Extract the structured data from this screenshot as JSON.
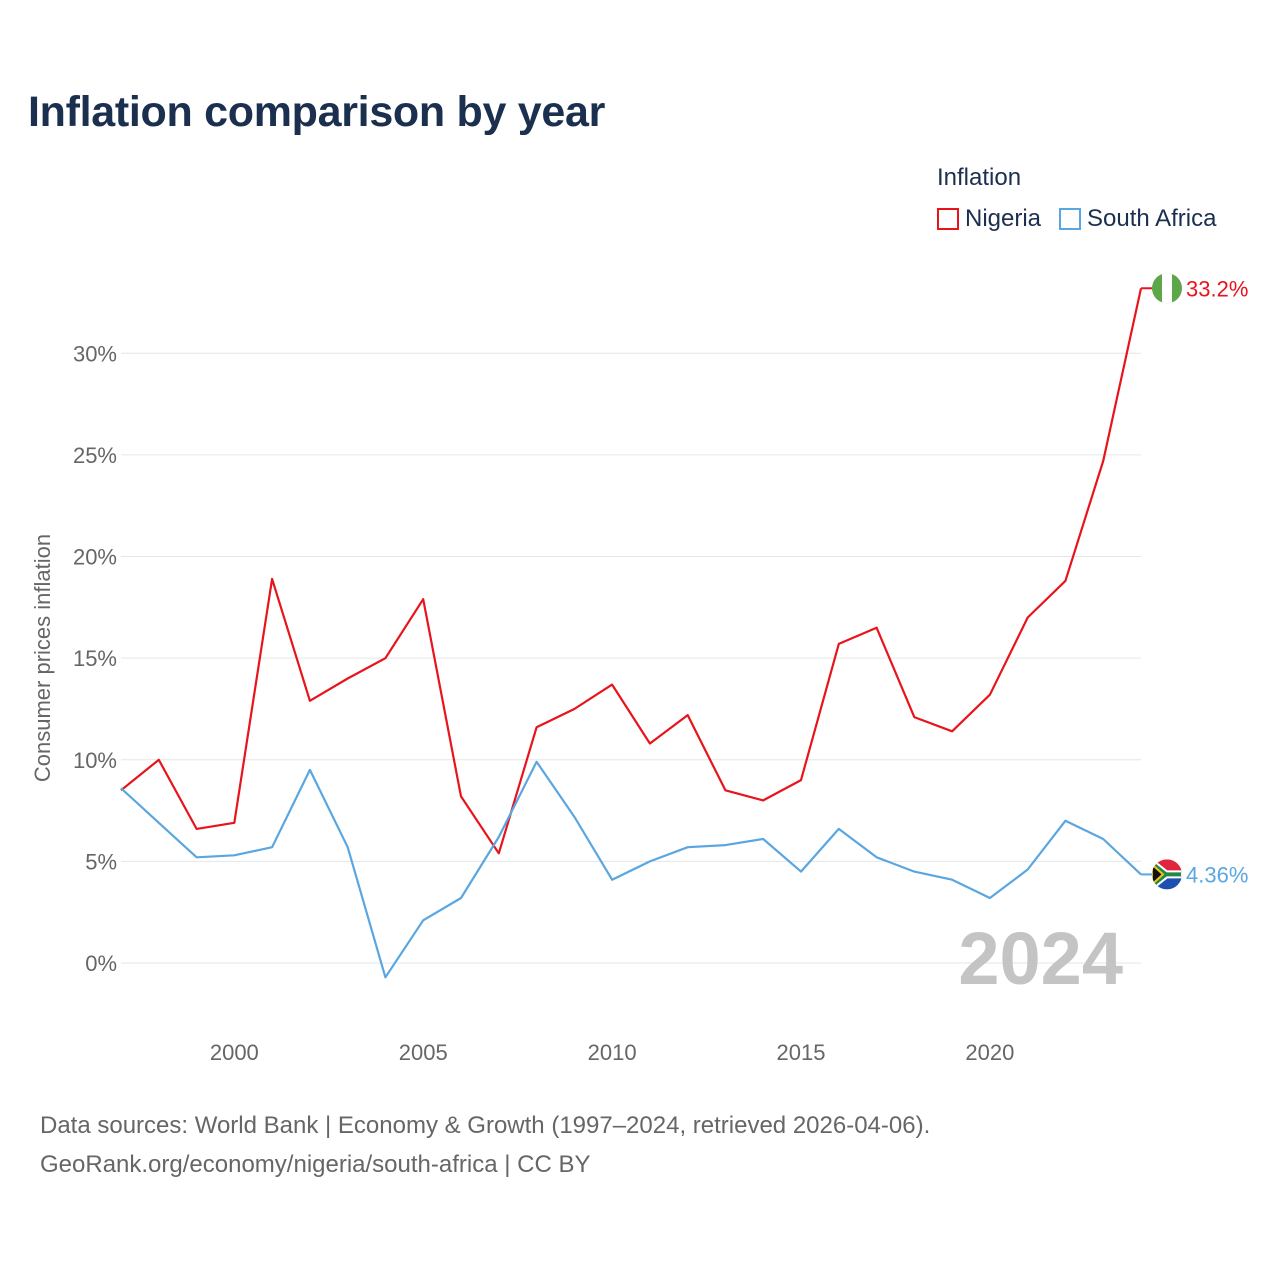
{
  "title": "Inflation comparison by year",
  "legend": {
    "title": "Inflation",
    "items": [
      {
        "label": "Nigeria",
        "color": "#e8141c"
      },
      {
        "label": "South Africa",
        "color": "#5aa6e0"
      }
    ]
  },
  "chart_data": {
    "type": "line",
    "title": "Inflation comparison by year",
    "xlabel": "",
    "ylabel": "Consumer prices inflation",
    "xlim": [
      1997,
      2024
    ],
    "ylim": [
      -3,
      34
    ],
    "x_ticks": [
      2000,
      2005,
      2010,
      2015,
      2020
    ],
    "y_ticks": [
      0,
      5,
      10,
      15,
      20,
      25,
      30
    ],
    "y_tick_labels": [
      "0%",
      "5%",
      "10%",
      "15%",
      "20%",
      "25%",
      "30%"
    ],
    "x": [
      1997,
      1998,
      1999,
      2000,
      2001,
      2002,
      2003,
      2004,
      2005,
      2006,
      2007,
      2008,
      2009,
      2010,
      2011,
      2012,
      2013,
      2014,
      2015,
      2016,
      2017,
      2018,
      2019,
      2020,
      2021,
      2022,
      2023,
      2024
    ],
    "series": [
      {
        "name": "Nigeria",
        "color": "#e8141c",
        "values": [
          8.5,
          10.0,
          6.6,
          6.9,
          18.9,
          12.9,
          14.0,
          15.0,
          17.9,
          8.2,
          5.4,
          11.6,
          12.5,
          13.7,
          10.8,
          12.2,
          8.5,
          8.0,
          9.0,
          15.7,
          16.5,
          12.1,
          11.4,
          13.2,
          17.0,
          18.8,
          24.7,
          33.2
        ],
        "end_label": "33.2%"
      },
      {
        "name": "South Africa",
        "color": "#5aa6e0",
        "values": [
          8.6,
          6.9,
          5.2,
          5.3,
          5.7,
          9.5,
          5.7,
          -0.7,
          2.1,
          3.2,
          6.2,
          9.9,
          7.2,
          4.1,
          5.0,
          5.7,
          5.8,
          6.1,
          4.5,
          6.6,
          5.2,
          4.5,
          4.1,
          3.2,
          4.6,
          7.0,
          6.1,
          4.36
        ],
        "end_label": "4.36%"
      }
    ],
    "current_year": "2024",
    "grid": true
  },
  "sources": {
    "line1": "Data sources: World Bank | Economy & Growth (1997–2024, retrieved 2026-04-06).",
    "line2": "GeoRank.org/economy/nigeria/south-africa | CC BY"
  },
  "flags": {
    "nigeria": {
      "green": "#5ea64a",
      "white": "#ffffff"
    },
    "south_africa": {
      "red": "#e0263c",
      "blue": "#1f4fb0",
      "green": "#22884a",
      "black": "#111111",
      "yellow": "#f2c318",
      "white": "#ffffff"
    }
  }
}
